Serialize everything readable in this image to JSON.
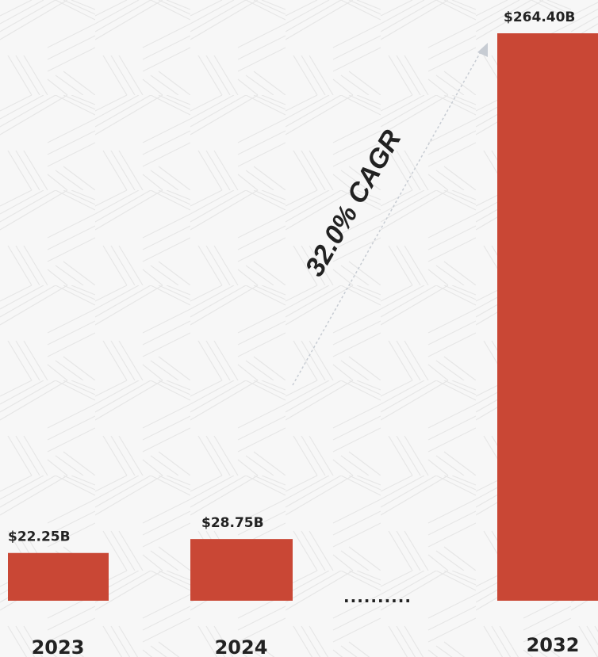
{
  "chart_data": {
    "type": "bar",
    "categories": [
      "2023",
      "2024",
      "2032"
    ],
    "values": [
      22.25,
      28.75,
      264.4
    ],
    "value_labels": [
      "$22.25B",
      "$28.75B",
      "$264.40B"
    ],
    "title": "",
    "xlabel": "",
    "ylabel": "",
    "ylim": [
      0,
      264.4
    ],
    "grid": false,
    "legend": "none",
    "annotations": {
      "cagr_text": "32.0% CAGR",
      "gap_marker": ".........."
    },
    "colors": {
      "bar": "#c94735",
      "text": "#222222",
      "background": "#f7f7f7",
      "pattern": "#e6e6e6",
      "arrow": "#c7ccd3"
    }
  }
}
